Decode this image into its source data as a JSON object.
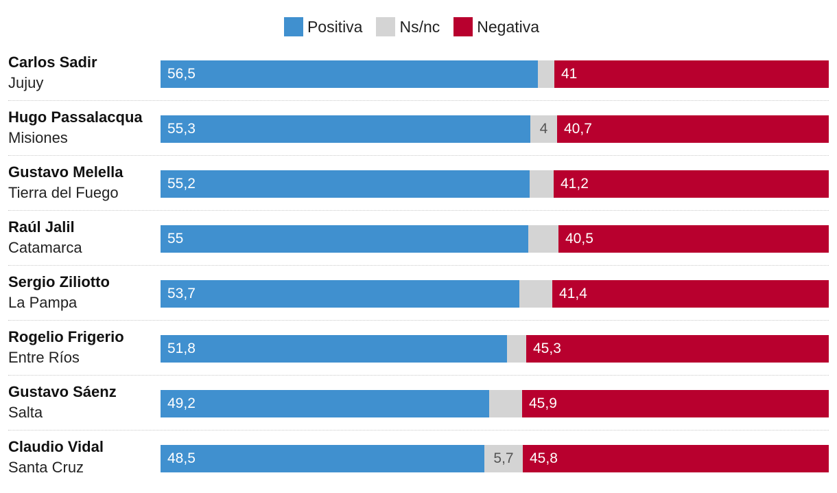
{
  "legend": [
    {
      "label": "Positiva",
      "color": "#4090cf"
    },
    {
      "label": "Ns/nc",
      "color": "#d4d4d4"
    },
    {
      "label": "Negativa",
      "color": "#b8002e"
    }
  ],
  "chart_data": {
    "type": "bar",
    "orientation": "horizontal",
    "stacked": true,
    "xlim": [
      0,
      100
    ],
    "series_names": [
      "Positiva",
      "Ns/nc",
      "Negativa"
    ],
    "rows": [
      {
        "name": "Carlos Sadir",
        "province": "Jujuy",
        "positiva": 56.5,
        "positiva_label": "56,5",
        "nsnc": 2.5,
        "nsnc_label": "",
        "negativa": 41,
        "negativa_label": "41"
      },
      {
        "name": "Hugo Passalacqua",
        "province": "Misiones",
        "positiva": 55.3,
        "positiva_label": "55,3",
        "nsnc": 4,
        "nsnc_label": "4",
        "negativa": 40.7,
        "negativa_label": "40,7"
      },
      {
        "name": "Gustavo Melella",
        "province": "Tierra del Fuego",
        "positiva": 55.2,
        "positiva_label": "55,2",
        "nsnc": 3.6,
        "nsnc_label": "",
        "negativa": 41.2,
        "negativa_label": "41,2"
      },
      {
        "name": "Raúl Jalil",
        "province": "Catamarca",
        "positiva": 55,
        "positiva_label": "55",
        "nsnc": 4.5,
        "nsnc_label": "",
        "negativa": 40.5,
        "negativa_label": "40,5"
      },
      {
        "name": "Sergio Ziliotto",
        "province": "La Pampa",
        "positiva": 53.7,
        "positiva_label": "53,7",
        "nsnc": 4.9,
        "nsnc_label": "",
        "negativa": 41.4,
        "negativa_label": "41,4"
      },
      {
        "name": "Rogelio Frigerio",
        "province": "Entre Ríos",
        "positiva": 51.8,
        "positiva_label": "51,8",
        "nsnc": 2.9,
        "nsnc_label": "",
        "negativa": 45.3,
        "negativa_label": "45,3"
      },
      {
        "name": "Gustavo Sáenz",
        "province": "Salta",
        "positiva": 49.2,
        "positiva_label": "49,2",
        "nsnc": 4.9,
        "nsnc_label": "",
        "negativa": 45.9,
        "negativa_label": "45,9"
      },
      {
        "name": "Claudio Vidal",
        "province": "Santa Cruz",
        "positiva": 48.5,
        "positiva_label": "48,5",
        "nsnc": 5.7,
        "nsnc_label": "5,7",
        "negativa": 45.8,
        "negativa_label": "45,8"
      }
    ]
  }
}
